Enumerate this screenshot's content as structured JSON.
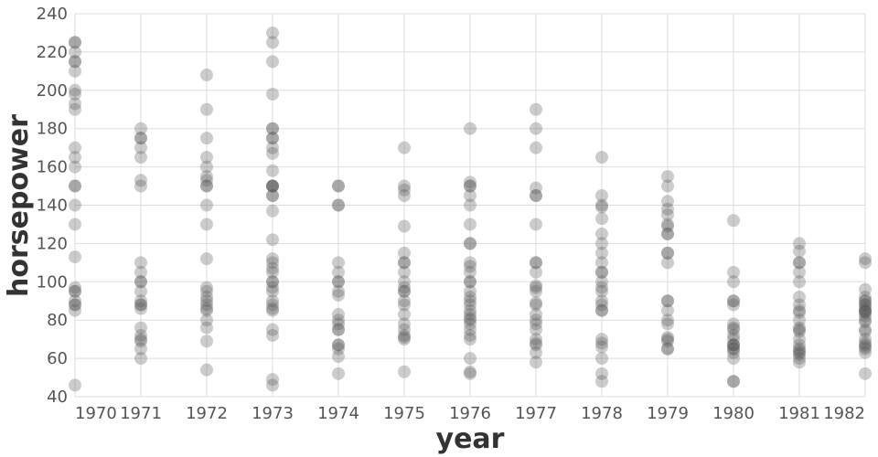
{
  "chart_data": {
    "type": "scatter",
    "xlabel": "year",
    "ylabel": "horsepower",
    "x_ticks": [
      "1970",
      "1971",
      "1972",
      "1973",
      "1974",
      "1975",
      "1976",
      "1977",
      "1978",
      "1979",
      "1980",
      "1981",
      "1982"
    ],
    "y_ticks": [
      40,
      60,
      80,
      100,
      120,
      140,
      160,
      180,
      200,
      220,
      240
    ],
    "xlim": [
      1970,
      1982
    ],
    "ylim": [
      40,
      240
    ],
    "grid": true,
    "point_color": "#555555",
    "point_opacity": 0.3,
    "points": [
      {
        "x": 1970,
        "y": 225
      },
      {
        "x": 1970,
        "y": 225
      },
      {
        "x": 1970,
        "y": 220
      },
      {
        "x": 1970,
        "y": 215
      },
      {
        "x": 1970,
        "y": 215
      },
      {
        "x": 1970,
        "y": 210
      },
      {
        "x": 1970,
        "y": 200
      },
      {
        "x": 1970,
        "y": 198
      },
      {
        "x": 1970,
        "y": 193
      },
      {
        "x": 1970,
        "y": 190
      },
      {
        "x": 1970,
        "y": 170
      },
      {
        "x": 1970,
        "y": 165
      },
      {
        "x": 1970,
        "y": 160
      },
      {
        "x": 1970,
        "y": 150
      },
      {
        "x": 1970,
        "y": 150
      },
      {
        "x": 1970,
        "y": 140
      },
      {
        "x": 1970,
        "y": 130
      },
      {
        "x": 1970,
        "y": 113
      },
      {
        "x": 1970,
        "y": 97
      },
      {
        "x": 1970,
        "y": 95
      },
      {
        "x": 1970,
        "y": 95
      },
      {
        "x": 1970,
        "y": 90
      },
      {
        "x": 1970,
        "y": 88
      },
      {
        "x": 1970,
        "y": 88
      },
      {
        "x": 1970,
        "y": 85
      },
      {
        "x": 1970,
        "y": 46
      },
      {
        "x": 1971,
        "y": 180
      },
      {
        "x": 1971,
        "y": 175
      },
      {
        "x": 1971,
        "y": 175
      },
      {
        "x": 1971,
        "y": 170
      },
      {
        "x": 1971,
        "y": 165
      },
      {
        "x": 1971,
        "y": 153
      },
      {
        "x": 1971,
        "y": 150
      },
      {
        "x": 1971,
        "y": 110
      },
      {
        "x": 1971,
        "y": 105
      },
      {
        "x": 1971,
        "y": 100
      },
      {
        "x": 1971,
        "y": 100
      },
      {
        "x": 1971,
        "y": 95
      },
      {
        "x": 1971,
        "y": 90
      },
      {
        "x": 1971,
        "y": 88
      },
      {
        "x": 1971,
        "y": 88
      },
      {
        "x": 1971,
        "y": 86
      },
      {
        "x": 1971,
        "y": 76
      },
      {
        "x": 1971,
        "y": 72
      },
      {
        "x": 1971,
        "y": 70
      },
      {
        "x": 1971,
        "y": 69
      },
      {
        "x": 1971,
        "y": 65
      },
      {
        "x": 1971,
        "y": 60
      },
      {
        "x": 1972,
        "y": 208
      },
      {
        "x": 1972,
        "y": 190
      },
      {
        "x": 1972,
        "y": 175
      },
      {
        "x": 1972,
        "y": 165
      },
      {
        "x": 1972,
        "y": 160
      },
      {
        "x": 1972,
        "y": 155
      },
      {
        "x": 1972,
        "y": 153
      },
      {
        "x": 1972,
        "y": 150
      },
      {
        "x": 1972,
        "y": 150
      },
      {
        "x": 1972,
        "y": 140
      },
      {
        "x": 1972,
        "y": 130
      },
      {
        "x": 1972,
        "y": 112
      },
      {
        "x": 1972,
        "y": 97
      },
      {
        "x": 1972,
        "y": 95
      },
      {
        "x": 1972,
        "y": 92
      },
      {
        "x": 1972,
        "y": 90
      },
      {
        "x": 1972,
        "y": 88
      },
      {
        "x": 1972,
        "y": 86
      },
      {
        "x": 1972,
        "y": 85
      },
      {
        "x": 1972,
        "y": 80
      },
      {
        "x": 1972,
        "y": 76
      },
      {
        "x": 1972,
        "y": 69
      },
      {
        "x": 1972,
        "y": 54
      },
      {
        "x": 1973,
        "y": 230
      },
      {
        "x": 1973,
        "y": 225
      },
      {
        "x": 1973,
        "y": 215
      },
      {
        "x": 1973,
        "y": 198
      },
      {
        "x": 1973,
        "y": 180
      },
      {
        "x": 1973,
        "y": 180
      },
      {
        "x": 1973,
        "y": 175
      },
      {
        "x": 1973,
        "y": 175
      },
      {
        "x": 1973,
        "y": 170
      },
      {
        "x": 1973,
        "y": 167
      },
      {
        "x": 1973,
        "y": 158
      },
      {
        "x": 1973,
        "y": 150
      },
      {
        "x": 1973,
        "y": 150
      },
      {
        "x": 1973,
        "y": 150
      },
      {
        "x": 1973,
        "y": 150
      },
      {
        "x": 1973,
        "y": 145
      },
      {
        "x": 1973,
        "y": 145
      },
      {
        "x": 1973,
        "y": 137
      },
      {
        "x": 1973,
        "y": 122
      },
      {
        "x": 1973,
        "y": 112
      },
      {
        "x": 1973,
        "y": 110
      },
      {
        "x": 1973,
        "y": 107
      },
      {
        "x": 1973,
        "y": 105
      },
      {
        "x": 1973,
        "y": 100
      },
      {
        "x": 1973,
        "y": 100
      },
      {
        "x": 1973,
        "y": 97
      },
      {
        "x": 1973,
        "y": 95
      },
      {
        "x": 1973,
        "y": 90
      },
      {
        "x": 1973,
        "y": 88
      },
      {
        "x": 1973,
        "y": 86
      },
      {
        "x": 1973,
        "y": 85
      },
      {
        "x": 1973,
        "y": 75
      },
      {
        "x": 1973,
        "y": 72
      },
      {
        "x": 1973,
        "y": 49
      },
      {
        "x": 1973,
        "y": 46
      },
      {
        "x": 1974,
        "y": 150
      },
      {
        "x": 1974,
        "y": 150
      },
      {
        "x": 1974,
        "y": 140
      },
      {
        "x": 1974,
        "y": 140
      },
      {
        "x": 1974,
        "y": 110
      },
      {
        "x": 1974,
        "y": 105
      },
      {
        "x": 1974,
        "y": 100
      },
      {
        "x": 1974,
        "y": 100
      },
      {
        "x": 1974,
        "y": 95
      },
      {
        "x": 1974,
        "y": 93
      },
      {
        "x": 1974,
        "y": 83
      },
      {
        "x": 1974,
        "y": 80
      },
      {
        "x": 1974,
        "y": 78
      },
      {
        "x": 1974,
        "y": 75
      },
      {
        "x": 1974,
        "y": 75
      },
      {
        "x": 1974,
        "y": 67
      },
      {
        "x": 1974,
        "y": 67
      },
      {
        "x": 1974,
        "y": 65
      },
      {
        "x": 1974,
        "y": 61
      },
      {
        "x": 1974,
        "y": 52
      },
      {
        "x": 1975,
        "y": 170
      },
      {
        "x": 1975,
        "y": 150
      },
      {
        "x": 1975,
        "y": 148
      },
      {
        "x": 1975,
        "y": 145
      },
      {
        "x": 1975,
        "y": 129
      },
      {
        "x": 1975,
        "y": 115
      },
      {
        "x": 1975,
        "y": 110
      },
      {
        "x": 1975,
        "y": 110
      },
      {
        "x": 1975,
        "y": 105
      },
      {
        "x": 1975,
        "y": 100
      },
      {
        "x": 1975,
        "y": 97
      },
      {
        "x": 1975,
        "y": 95
      },
      {
        "x": 1975,
        "y": 95
      },
      {
        "x": 1975,
        "y": 90
      },
      {
        "x": 1975,
        "y": 88
      },
      {
        "x": 1975,
        "y": 83
      },
      {
        "x": 1975,
        "y": 78
      },
      {
        "x": 1975,
        "y": 75
      },
      {
        "x": 1975,
        "y": 72
      },
      {
        "x": 1975,
        "y": 71
      },
      {
        "x": 1975,
        "y": 70
      },
      {
        "x": 1975,
        "y": 53
      },
      {
        "x": 1976,
        "y": 180
      },
      {
        "x": 1976,
        "y": 152
      },
      {
        "x": 1976,
        "y": 150
      },
      {
        "x": 1976,
        "y": 150
      },
      {
        "x": 1976,
        "y": 145
      },
      {
        "x": 1976,
        "y": 140
      },
      {
        "x": 1976,
        "y": 130
      },
      {
        "x": 1976,
        "y": 120
      },
      {
        "x": 1976,
        "y": 120
      },
      {
        "x": 1976,
        "y": 110
      },
      {
        "x": 1976,
        "y": 108
      },
      {
        "x": 1976,
        "y": 105
      },
      {
        "x": 1976,
        "y": 100
      },
      {
        "x": 1976,
        "y": 100
      },
      {
        "x": 1976,
        "y": 95
      },
      {
        "x": 1976,
        "y": 92
      },
      {
        "x": 1976,
        "y": 90
      },
      {
        "x": 1976,
        "y": 88
      },
      {
        "x": 1976,
        "y": 85
      },
      {
        "x": 1976,
        "y": 83
      },
      {
        "x": 1976,
        "y": 81
      },
      {
        "x": 1976,
        "y": 80
      },
      {
        "x": 1976,
        "y": 78
      },
      {
        "x": 1976,
        "y": 75
      },
      {
        "x": 1976,
        "y": 72
      },
      {
        "x": 1976,
        "y": 70
      },
      {
        "x": 1976,
        "y": 60
      },
      {
        "x": 1976,
        "y": 53
      },
      {
        "x": 1976,
        "y": 52
      },
      {
        "x": 1977,
        "y": 190
      },
      {
        "x": 1977,
        "y": 180
      },
      {
        "x": 1977,
        "y": 170
      },
      {
        "x": 1977,
        "y": 149
      },
      {
        "x": 1977,
        "y": 145
      },
      {
        "x": 1977,
        "y": 145
      },
      {
        "x": 1977,
        "y": 130
      },
      {
        "x": 1977,
        "y": 110
      },
      {
        "x": 1977,
        "y": 110
      },
      {
        "x": 1977,
        "y": 105
      },
      {
        "x": 1977,
        "y": 98
      },
      {
        "x": 1977,
        "y": 97
      },
      {
        "x": 1977,
        "y": 95
      },
      {
        "x": 1977,
        "y": 89
      },
      {
        "x": 1977,
        "y": 88
      },
      {
        "x": 1977,
        "y": 83
      },
      {
        "x": 1977,
        "y": 80
      },
      {
        "x": 1977,
        "y": 78
      },
      {
        "x": 1977,
        "y": 75
      },
      {
        "x": 1977,
        "y": 70
      },
      {
        "x": 1977,
        "y": 68
      },
      {
        "x": 1977,
        "y": 67
      },
      {
        "x": 1977,
        "y": 63
      },
      {
        "x": 1977,
        "y": 58
      },
      {
        "x": 1978,
        "y": 165
      },
      {
        "x": 1978,
        "y": 145
      },
      {
        "x": 1978,
        "y": 140
      },
      {
        "x": 1978,
        "y": 139
      },
      {
        "x": 1978,
        "y": 133
      },
      {
        "x": 1978,
        "y": 125
      },
      {
        "x": 1978,
        "y": 120
      },
      {
        "x": 1978,
        "y": 115
      },
      {
        "x": 1978,
        "y": 110
      },
      {
        "x": 1978,
        "y": 105
      },
      {
        "x": 1978,
        "y": 105
      },
      {
        "x": 1978,
        "y": 100
      },
      {
        "x": 1978,
        "y": 97
      },
      {
        "x": 1978,
        "y": 95
      },
      {
        "x": 1978,
        "y": 90
      },
      {
        "x": 1978,
        "y": 88
      },
      {
        "x": 1978,
        "y": 85
      },
      {
        "x": 1978,
        "y": 85
      },
      {
        "x": 1978,
        "y": 70
      },
      {
        "x": 1978,
        "y": 68
      },
      {
        "x": 1978,
        "y": 66
      },
      {
        "x": 1978,
        "y": 60
      },
      {
        "x": 1978,
        "y": 52
      },
      {
        "x": 1978,
        "y": 48
      },
      {
        "x": 1979,
        "y": 155
      },
      {
        "x": 1979,
        "y": 150
      },
      {
        "x": 1979,
        "y": 142
      },
      {
        "x": 1979,
        "y": 138
      },
      {
        "x": 1979,
        "y": 135
      },
      {
        "x": 1979,
        "y": 130
      },
      {
        "x": 1979,
        "y": 129
      },
      {
        "x": 1979,
        "y": 125
      },
      {
        "x": 1979,
        "y": 125
      },
      {
        "x": 1979,
        "y": 115
      },
      {
        "x": 1979,
        "y": 115
      },
      {
        "x": 1979,
        "y": 110
      },
      {
        "x": 1979,
        "y": 90
      },
      {
        "x": 1979,
        "y": 90
      },
      {
        "x": 1979,
        "y": 85
      },
      {
        "x": 1979,
        "y": 80
      },
      {
        "x": 1979,
        "y": 78
      },
      {
        "x": 1979,
        "y": 71
      },
      {
        "x": 1979,
        "y": 70
      },
      {
        "x": 1979,
        "y": 69
      },
      {
        "x": 1979,
        "y": 65
      },
      {
        "x": 1979,
        "y": 65
      },
      {
        "x": 1980,
        "y": 132
      },
      {
        "x": 1980,
        "y": 105
      },
      {
        "x": 1980,
        "y": 100
      },
      {
        "x": 1980,
        "y": 90
      },
      {
        "x": 1980,
        "y": 90
      },
      {
        "x": 1980,
        "y": 88
      },
      {
        "x": 1980,
        "y": 78
      },
      {
        "x": 1980,
        "y": 76
      },
      {
        "x": 1980,
        "y": 75
      },
      {
        "x": 1980,
        "y": 72
      },
      {
        "x": 1980,
        "y": 70
      },
      {
        "x": 1980,
        "y": 67
      },
      {
        "x": 1980,
        "y": 67
      },
      {
        "x": 1980,
        "y": 67
      },
      {
        "x": 1980,
        "y": 65
      },
      {
        "x": 1980,
        "y": 65
      },
      {
        "x": 1980,
        "y": 63
      },
      {
        "x": 1980,
        "y": 60
      },
      {
        "x": 1980,
        "y": 48
      },
      {
        "x": 1980,
        "y": 48
      },
      {
        "x": 1981,
        "y": 120
      },
      {
        "x": 1981,
        "y": 116
      },
      {
        "x": 1981,
        "y": 110
      },
      {
        "x": 1981,
        "y": 110
      },
      {
        "x": 1981,
        "y": 105
      },
      {
        "x": 1981,
        "y": 100
      },
      {
        "x": 1981,
        "y": 92
      },
      {
        "x": 1981,
        "y": 88
      },
      {
        "x": 1981,
        "y": 85
      },
      {
        "x": 1981,
        "y": 84
      },
      {
        "x": 1981,
        "y": 80
      },
      {
        "x": 1981,
        "y": 76
      },
      {
        "x": 1981,
        "y": 75
      },
      {
        "x": 1981,
        "y": 74
      },
      {
        "x": 1981,
        "y": 70
      },
      {
        "x": 1981,
        "y": 67
      },
      {
        "x": 1981,
        "y": 65
      },
      {
        "x": 1981,
        "y": 64
      },
      {
        "x": 1981,
        "y": 63
      },
      {
        "x": 1981,
        "y": 62
      },
      {
        "x": 1981,
        "y": 60
      },
      {
        "x": 1981,
        "y": 58
      },
      {
        "x": 1982,
        "y": 112
      },
      {
        "x": 1982,
        "y": 110
      },
      {
        "x": 1982,
        "y": 96
      },
      {
        "x": 1982,
        "y": 92
      },
      {
        "x": 1982,
        "y": 90
      },
      {
        "x": 1982,
        "y": 90
      },
      {
        "x": 1982,
        "y": 88
      },
      {
        "x": 1982,
        "y": 88
      },
      {
        "x": 1982,
        "y": 86
      },
      {
        "x": 1982,
        "y": 85
      },
      {
        "x": 1982,
        "y": 85
      },
      {
        "x": 1982,
        "y": 84
      },
      {
        "x": 1982,
        "y": 84
      },
      {
        "x": 1982,
        "y": 82
      },
      {
        "x": 1982,
        "y": 80
      },
      {
        "x": 1982,
        "y": 79
      },
      {
        "x": 1982,
        "y": 75
      },
      {
        "x": 1982,
        "y": 74
      },
      {
        "x": 1982,
        "y": 70
      },
      {
        "x": 1982,
        "y": 68
      },
      {
        "x": 1982,
        "y": 67
      },
      {
        "x": 1982,
        "y": 66
      },
      {
        "x": 1982,
        "y": 65
      },
      {
        "x": 1982,
        "y": 63
      },
      {
        "x": 1982,
        "y": 52
      }
    ]
  }
}
